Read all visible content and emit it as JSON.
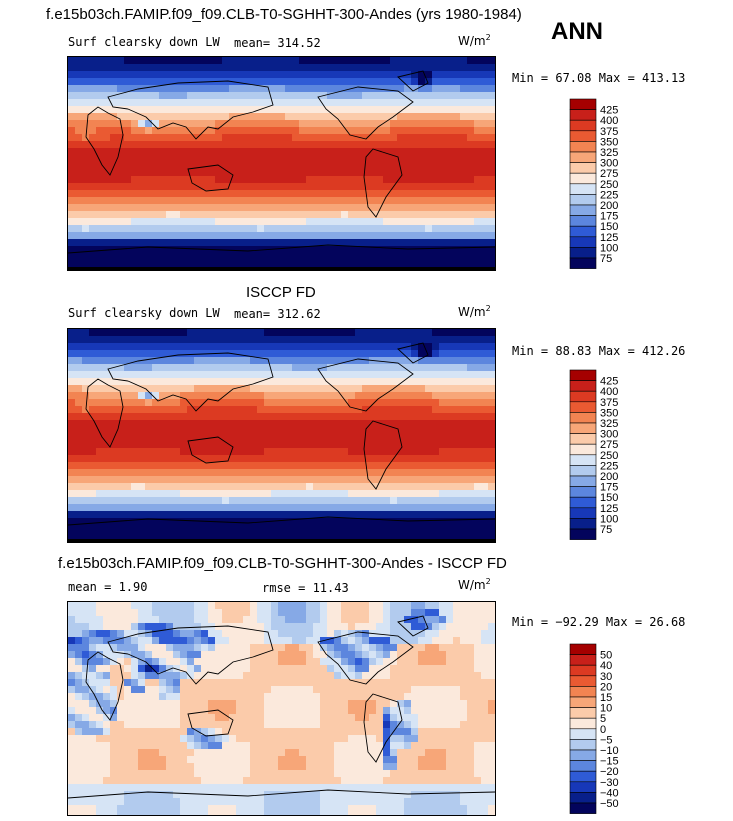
{
  "main_title": "f.e15b03ch.FAMIP.f09_f09.CLB-T0-SGHHT-300-Andes (yrs 1980-1984)",
  "season": "ANN",
  "units_base": "W/m",
  "units_exp": "2",
  "panels": [
    {
      "label": "Surf clearsky down LW",
      "stat1": "mean= 314.52",
      "min_text": "Min =  67.08 Max = 413.13",
      "kind": "abs"
    },
    {
      "label": "Surf clearsky down LW",
      "stat1": "mean= 312.62",
      "min_text": "Min =  88.83 Max = 412.26",
      "kind": "abs"
    },
    {
      "label": "mean =   1.90",
      "stat2": "rmse =  11.43",
      "min_text": "Min = −92.29 Max =  26.68",
      "kind": "diff"
    }
  ],
  "obs_title": "ISCCP FD",
  "diff_title": "f.e15b03ch.FAMIP.f09_f09.CLB-T0-SGHHT-300-Andes - ISCCP FD",
  "chart_data": [
    {
      "type": "heatmap",
      "title": "f.e15b03ch.FAMIP.f09_f09.CLB-T0-SGHHT-300-Andes (yrs 1980-1984)",
      "variable": "Surf clearsky down LW",
      "mean": 314.52,
      "min": 67.08,
      "max": 413.13,
      "levels": [
        425,
        400,
        375,
        350,
        325,
        300,
        275,
        250,
        225,
        200,
        175,
        150,
        125,
        100,
        75
      ],
      "colors": [
        "#a50000",
        "#c8201a",
        "#dc3a22",
        "#ea5a32",
        "#f28452",
        "#f7a678",
        "#fbcbaa",
        "#fbe9dc",
        "#d6e4f5",
        "#b2cbee",
        "#86a9e6",
        "#5c86de",
        "#2f5bd6",
        "#1738b8",
        "#081f8a",
        "#03045c"
      ],
      "units": "W/m^2"
    },
    {
      "type": "heatmap",
      "title": "ISCCP FD",
      "variable": "Surf clearsky down LW",
      "mean": 312.62,
      "min": 88.83,
      "max": 412.26,
      "levels": [
        425,
        400,
        375,
        350,
        325,
        300,
        275,
        250,
        225,
        200,
        175,
        150,
        125,
        100,
        75
      ],
      "colors": [
        "#a50000",
        "#c8201a",
        "#dc3a22",
        "#ea5a32",
        "#f28452",
        "#f7a678",
        "#fbcbaa",
        "#fbe9dc",
        "#d6e4f5",
        "#b2cbee",
        "#86a9e6",
        "#5c86de",
        "#2f5bd6",
        "#1738b8",
        "#081f8a",
        "#03045c"
      ],
      "units": "W/m^2"
    },
    {
      "type": "heatmap",
      "title": "f.e15b03ch.FAMIP.f09_f09.CLB-T0-SGHHT-300-Andes - ISCCP FD",
      "variable": "Surf clearsky down LW difference",
      "mean": 1.9,
      "rmse": 11.43,
      "min": -92.29,
      "max": 26.68,
      "levels": [
        "50",
        "40",
        "30",
        "20",
        "15",
        "10",
        "5",
        "0",
        "−5",
        "−10",
        "−15",
        "−20",
        "−30",
        "−40",
        "−50"
      ],
      "colors": [
        "#a50000",
        "#c8201a",
        "#dc3a22",
        "#ea5a32",
        "#f28452",
        "#f7a678",
        "#fbcbaa",
        "#fbe9dc",
        "#d6e4f5",
        "#b2cbee",
        "#86a9e6",
        "#5c86de",
        "#2f5bd6",
        "#1738b8",
        "#081f8a",
        "#03045c"
      ],
      "units": "W/m^2"
    }
  ]
}
